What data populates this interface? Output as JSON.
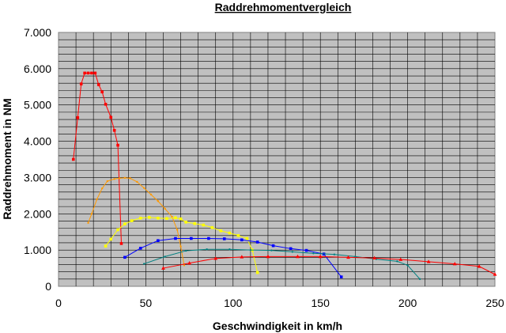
{
  "chart_data": {
    "type": "line",
    "title": "Raddrehmomentvergleich",
    "xlabel": "Geschwindigkeit in km/h",
    "ylabel": "Raddrehmoment in NM",
    "xlim": [
      0,
      250
    ],
    "ylim": [
      0,
      7000
    ],
    "x_ticks": [
      0,
      50,
      100,
      150,
      200,
      250
    ],
    "y_ticks": [
      0,
      1000,
      2000,
      3000,
      4000,
      5000,
      6000,
      7000
    ],
    "x_tick_labels": [
      "0",
      "50",
      "100",
      "150",
      "200",
      "250"
    ],
    "y_tick_labels": [
      "0",
      "1.000",
      "2.000",
      "3.000",
      "4.000",
      "5.000",
      "6.000",
      "7.000"
    ],
    "grid": true,
    "plot_background": "#c0c0c0",
    "grid_color": "#000000",
    "series": [
      {
        "color": "#ff0000",
        "marker": "square",
        "points": [
          [
            8.5,
            3500
          ],
          [
            11,
            4650
          ],
          [
            13,
            5580
          ],
          [
            15,
            5880
          ],
          [
            17,
            5880
          ],
          [
            19,
            5880
          ],
          [
            21,
            5880
          ],
          [
            23,
            5560
          ],
          [
            25,
            5360
          ],
          [
            27,
            5020
          ],
          [
            30,
            4660
          ],
          [
            32,
            4300
          ],
          [
            34,
            3890
          ],
          [
            36,
            1180
          ]
        ]
      },
      {
        "color": "#ff9900",
        "marker": "dot",
        "points": [
          [
            17,
            1750
          ],
          [
            19,
            2000
          ],
          [
            22,
            2400
          ],
          [
            25,
            2700
          ],
          [
            28,
            2900
          ],
          [
            32,
            2960
          ],
          [
            35,
            2980
          ],
          [
            38,
            2990
          ],
          [
            41,
            2980
          ],
          [
            45,
            2880
          ],
          [
            49,
            2710
          ],
          [
            53,
            2530
          ],
          [
            57,
            2350
          ],
          [
            61,
            2140
          ],
          [
            65,
            1920
          ],
          [
            68,
            1560
          ],
          [
            70,
            1100
          ],
          [
            72,
            580
          ]
        ]
      },
      {
        "color": "#ffff00",
        "marker": "square",
        "points": [
          [
            27,
            1110
          ],
          [
            30,
            1300
          ],
          [
            34,
            1560
          ],
          [
            38,
            1720
          ],
          [
            42,
            1810
          ],
          [
            47,
            1880
          ],
          [
            52,
            1900
          ],
          [
            57,
            1880
          ],
          [
            62,
            1870
          ],
          [
            67,
            1890
          ],
          [
            70,
            1860
          ],
          [
            73,
            1770
          ],
          [
            78,
            1730
          ],
          [
            83,
            1690
          ],
          [
            88,
            1620
          ],
          [
            93,
            1530
          ],
          [
            98,
            1470
          ],
          [
            103,
            1400
          ],
          [
            108,
            1320
          ],
          [
            111,
            1000
          ],
          [
            114,
            380
          ]
        ]
      },
      {
        "color": "#0000ff",
        "marker": "square",
        "points": [
          [
            38,
            800
          ],
          [
            47,
            1050
          ],
          [
            57,
            1260
          ],
          [
            67,
            1320
          ],
          [
            76,
            1320
          ],
          [
            86,
            1320
          ],
          [
            95,
            1310
          ],
          [
            105,
            1280
          ],
          [
            114,
            1220
          ],
          [
            123,
            1120
          ],
          [
            133,
            1040
          ],
          [
            142,
            990
          ],
          [
            152,
            890
          ],
          [
            162,
            260
          ]
        ]
      },
      {
        "color": "#008080",
        "marker": "dot",
        "points": [
          [
            49,
            620
          ],
          [
            61,
            820
          ],
          [
            73,
            980
          ],
          [
            85,
            1020
          ],
          [
            98,
            1020
          ],
          [
            110,
            1000
          ],
          [
            122,
            990
          ],
          [
            134,
            950
          ],
          [
            146,
            910
          ],
          [
            158,
            880
          ],
          [
            170,
            820
          ],
          [
            182,
            750
          ],
          [
            194,
            690
          ],
          [
            200,
            580
          ],
          [
            207,
            200
          ]
        ]
      },
      {
        "color": "#ff0000",
        "marker": "triangle",
        "points": [
          [
            60,
            500
          ],
          [
            75,
            640
          ],
          [
            90,
            770
          ],
          [
            105,
            810
          ],
          [
            120,
            820
          ],
          [
            137,
            820
          ],
          [
            150,
            820
          ],
          [
            166,
            800
          ],
          [
            181,
            780
          ],
          [
            196,
            740
          ],
          [
            212,
            680
          ],
          [
            227,
            620
          ],
          [
            241,
            550
          ],
          [
            250,
            330
          ]
        ]
      }
    ]
  }
}
